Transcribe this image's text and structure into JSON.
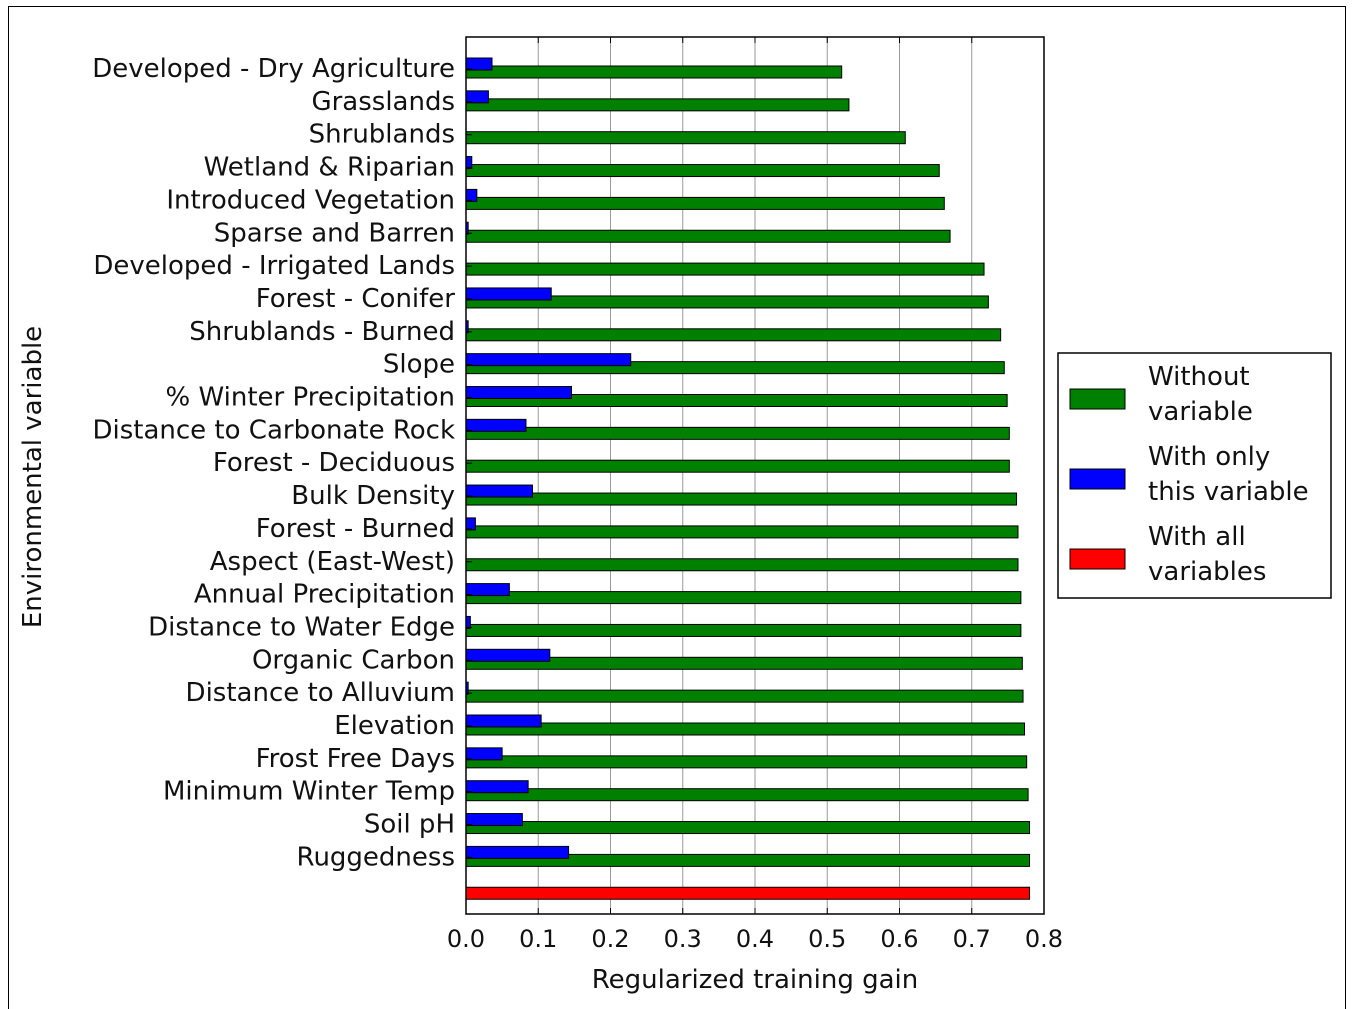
{
  "chart_data": {
    "type": "bar",
    "orientation": "horizontal",
    "xlabel": "Regularized training gain",
    "ylabel": "Environmental variable",
    "xlim": [
      0.0,
      0.8
    ],
    "xticks": [
      "0.0",
      "0.1",
      "0.2",
      "0.3",
      "0.4",
      "0.5",
      "0.6",
      "0.7",
      "0.8"
    ],
    "grid": "vertical",
    "categories": [
      "Developed - Dry Agriculture",
      "Grasslands",
      "Shrublands",
      "Wetland & Riparian",
      "Introduced Vegetation",
      "Sparse and Barren",
      "Developed - Irrigated Lands",
      "Forest - Conifer",
      "Shrublands - Burned",
      "Slope",
      "% Winter Precipitation",
      "Distance to Carbonate Rock",
      "Forest - Deciduous",
      "Bulk Density",
      "Forest - Burned",
      "Aspect (East-West)",
      "Annual Precipitation",
      "Distance to Water Edge",
      "Organic Carbon",
      "Distance to Alluvium",
      "Elevation",
      "Frost Free Days",
      "Minimum Winter Temp",
      "Soil pH",
      "Ruggedness"
    ],
    "series": [
      {
        "name": "Without variable",
        "color": "#008000",
        "values": [
          0.52,
          0.53,
          0.608,
          0.655,
          0.662,
          0.67,
          0.717,
          0.723,
          0.74,
          0.745,
          0.749,
          0.752,
          0.752,
          0.762,
          0.764,
          0.764,
          0.768,
          0.768,
          0.77,
          0.771,
          0.773,
          0.776,
          0.778,
          0.78,
          0.78
        ]
      },
      {
        "name": "With only this variable",
        "color": "#0000ff",
        "values": [
          0.036,
          0.031,
          0.0,
          0.008,
          0.015,
          0.003,
          0.0,
          0.118,
          0.003,
          0.228,
          0.146,
          0.083,
          0.0,
          0.092,
          0.013,
          0.0,
          0.06,
          0.006,
          0.116,
          0.003,
          0.104,
          0.05,
          0.086,
          0.078,
          0.142
        ]
      }
    ],
    "total": {
      "name": "With all variables",
      "color": "#ff0000",
      "value": 0.78
    },
    "legend": {
      "placement": "right",
      "entries": [
        {
          "line1": "Without",
          "line2": "variable",
          "color": "#008000"
        },
        {
          "line1": "With only",
          "line2": "this variable",
          "color": "#0000ff"
        },
        {
          "line1": "With all",
          "line2": "variables",
          "color": "#ff0000"
        }
      ]
    }
  }
}
